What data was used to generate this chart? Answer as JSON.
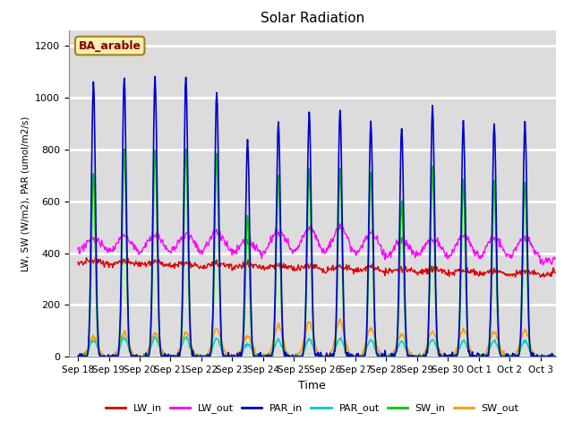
{
  "title": "Solar Radiation",
  "ylabel": "LW, SW (W/m2), PAR (umol/m2/s)",
  "xlabel": "Time",
  "site_label": "BA_arable",
  "ylim": [
    0,
    1260
  ],
  "bg_color": "#dcdcdc",
  "grid_color": "#c0c0c0",
  "series": {
    "LW_in": {
      "color": "#dd0000",
      "lw": 1.0
    },
    "LW_out": {
      "color": "#ff00ff",
      "lw": 1.0
    },
    "PAR_in": {
      "color": "#0000cc",
      "lw": 1.2
    },
    "PAR_out": {
      "color": "#00cccc",
      "lw": 1.2
    },
    "SW_in": {
      "color": "#00cc00",
      "lw": 1.2
    },
    "SW_out": {
      "color": "#ff9900",
      "lw": 1.2
    }
  },
  "x_tick_labels": [
    "Sep 18",
    "Sep 19",
    "Sep 20",
    "Sep 21",
    "Sep 22",
    "Sep 23",
    "Sep 24",
    "Sep 25",
    "Sep 26",
    "Sep 27",
    "Sep 28",
    "Sep 29",
    "Sep 30",
    "Oct 1",
    "Oct 2",
    "Oct 3"
  ],
  "x_tick_positions": [
    0,
    1,
    2,
    3,
    4,
    5,
    6,
    7,
    8,
    9,
    10,
    11,
    12,
    13,
    14,
    15
  ]
}
